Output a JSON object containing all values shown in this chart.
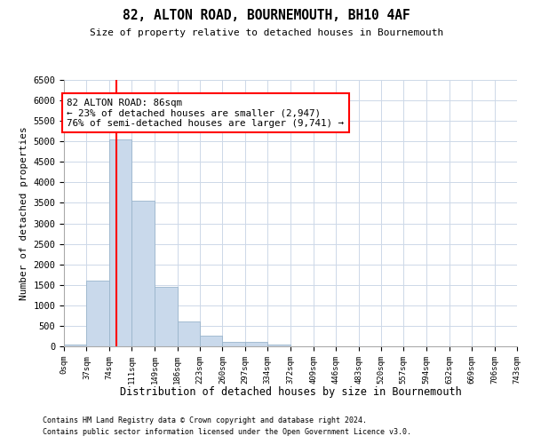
{
  "title": "82, ALTON ROAD, BOURNEMOUTH, BH10 4AF",
  "subtitle": "Size of property relative to detached houses in Bournemouth",
  "xlabel": "Distribution of detached houses by size in Bournemouth",
  "ylabel": "Number of detached properties",
  "footer1": "Contains HM Land Registry data © Crown copyright and database right 2024.",
  "footer2": "Contains public sector information licensed under the Open Government Licence v3.0.",
  "bar_color": "#c9d9eb",
  "bar_edge_color": "#9ab5cc",
  "grid_color": "#cdd8e8",
  "red_line_x": 86,
  "annotation_text": "82 ALTON ROAD: 86sqm\n← 23% of detached houses are smaller (2,947)\n76% of semi-detached houses are larger (9,741) →",
  "ylim": [
    0,
    6500
  ],
  "bin_edges": [
    0,
    37,
    74,
    111,
    149,
    186,
    223,
    260,
    297,
    334,
    372,
    409,
    446,
    483,
    520,
    557,
    594,
    632,
    669,
    706,
    743
  ],
  "bar_heights": [
    50,
    1600,
    5050,
    3550,
    1450,
    600,
    250,
    100,
    100,
    50,
    0,
    0,
    0,
    0,
    0,
    0,
    0,
    0,
    0,
    0
  ],
  "yticks": [
    0,
    500,
    1000,
    1500,
    2000,
    2500,
    3000,
    3500,
    4000,
    4500,
    5000,
    5500,
    6000,
    6500
  ]
}
